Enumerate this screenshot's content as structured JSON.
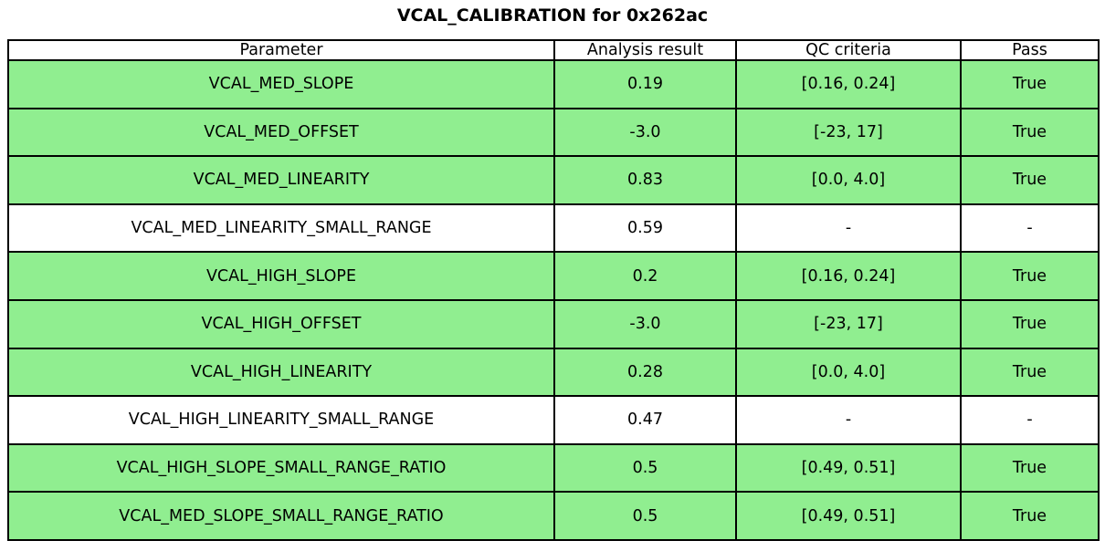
{
  "title": "VCAL_CALIBRATION for 0x262ac",
  "colors": {
    "pass_row_green": "#90ee90",
    "neutral_row_white": "#ffffff",
    "border_black": "#000000",
    "text_black": "#000000"
  },
  "chart_data": {
    "type": "table",
    "title": "VCAL_CALIBRATION for 0x262ac",
    "columns": [
      "Parameter",
      "Analysis result",
      "QC criteria",
      "Pass"
    ],
    "rows": [
      {
        "parameter": "VCAL_MED_SLOPE",
        "result": "0.19",
        "criteria": "[0.16, 0.24]",
        "pass": "True",
        "highlighted": true
      },
      {
        "parameter": "VCAL_MED_OFFSET",
        "result": "-3.0",
        "criteria": "[-23, 17]",
        "pass": "True",
        "highlighted": true
      },
      {
        "parameter": "VCAL_MED_LINEARITY",
        "result": "0.83",
        "criteria": "[0.0, 4.0]",
        "pass": "True",
        "highlighted": true
      },
      {
        "parameter": "VCAL_MED_LINEARITY_SMALL_RANGE",
        "result": "0.59",
        "criteria": "-",
        "pass": "-",
        "highlighted": false
      },
      {
        "parameter": "VCAL_HIGH_SLOPE",
        "result": "0.2",
        "criteria": "[0.16, 0.24]",
        "pass": "True",
        "highlighted": true
      },
      {
        "parameter": "VCAL_HIGH_OFFSET",
        "result": "-3.0",
        "criteria": "[-23, 17]",
        "pass": "True",
        "highlighted": true
      },
      {
        "parameter": "VCAL_HIGH_LINEARITY",
        "result": "0.28",
        "criteria": "[0.0, 4.0]",
        "pass": "True",
        "highlighted": true
      },
      {
        "parameter": "VCAL_HIGH_LINEARITY_SMALL_RANGE",
        "result": "0.47",
        "criteria": "-",
        "pass": "-",
        "highlighted": false
      },
      {
        "parameter": "VCAL_HIGH_SLOPE_SMALL_RANGE_RATIO",
        "result": "0.5",
        "criteria": "[0.49, 0.51]",
        "pass": "True",
        "highlighted": true
      },
      {
        "parameter": "VCAL_MED_SLOPE_SMALL_RANGE_RATIO",
        "result": "0.5",
        "criteria": "[0.49, 0.51]",
        "pass": "True",
        "highlighted": true
      }
    ]
  }
}
